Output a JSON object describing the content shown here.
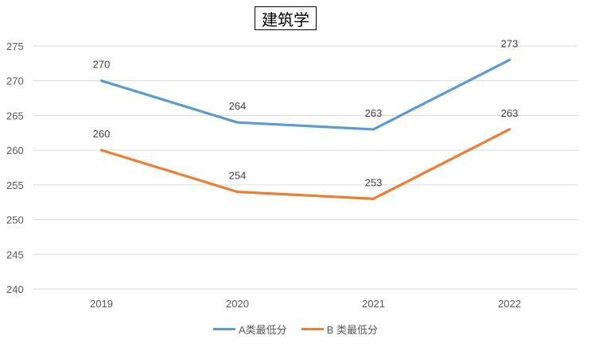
{
  "chart_data": {
    "type": "line",
    "title": "建筑学",
    "categories": [
      "2019",
      "2020",
      "2021",
      "2022"
    ],
    "series": [
      {
        "name": "A类最低分",
        "values": [
          270,
          264,
          263,
          273
        ],
        "color": "#5b9bd5"
      },
      {
        "name": "B 类最低分",
        "values": [
          260,
          254,
          253,
          263
        ],
        "color": "#ed7d31"
      }
    ],
    "ylim": [
      240,
      275
    ],
    "yticks": [
      "240",
      "245",
      "250",
      "255",
      "260",
      "265",
      "270",
      "275"
    ],
    "grid": true,
    "legend_position": "bottom",
    "data_labels": true
  }
}
